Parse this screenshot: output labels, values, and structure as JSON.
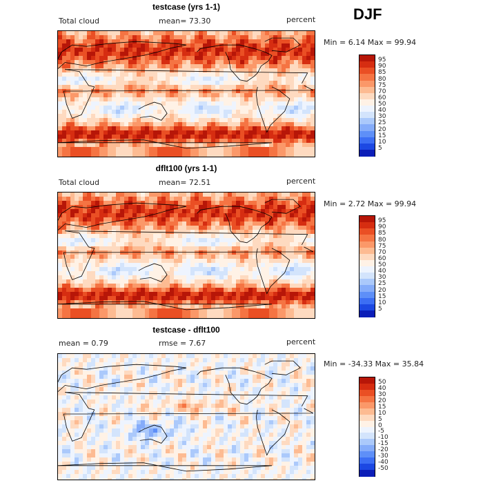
{
  "season": "DJF",
  "units": "percent",
  "colors": {
    "full_palette": [
      "#08006e",
      "#0c1eb8",
      "#1c48e3",
      "#3c6ef4",
      "#5e8ff8",
      "#85acfa",
      "#abc9fb",
      "#d3e4fc",
      "#eef4fe",
      "#fff2e6",
      "#fedac0",
      "#fdbb92",
      "#fb9869",
      "#f57443",
      "#ea4f24",
      "#d62d11",
      "#b71608",
      "#8c0303"
    ],
    "diff_palette": [
      "#08006e",
      "#0c1eb8",
      "#1c48e3",
      "#3c6ef4",
      "#5e8ff8",
      "#85acfa",
      "#abc9fb",
      "#d3e4fc",
      "#eef4fe",
      "#fff2e6",
      "#fedac0",
      "#fdbb92",
      "#fb9869",
      "#f57443",
      "#ea4f24",
      "#d62d11",
      "#b71608",
      "#8c0303"
    ]
  },
  "panels": [
    {
      "title": "testcase (yrs 1-1)",
      "left_label": "Total cloud",
      "center_label": "mean=  73.30",
      "right_label": "percent",
      "stats": "Min =    6.14  Max =   99.94",
      "colorbar_ticks": [
        "95",
        "90",
        "85",
        "80",
        "75",
        "70",
        "60",
        "50",
        "40",
        "30",
        "25",
        "20",
        "15",
        "10",
        "5"
      ]
    },
    {
      "title": "dflt100 (yrs 1-1)",
      "left_label": "Total cloud",
      "center_label": "mean=  72.51",
      "right_label": "percent",
      "stats": "Min =    2.72  Max =   99.94",
      "colorbar_ticks": [
        "95",
        "90",
        "85",
        "80",
        "75",
        "70",
        "60",
        "50",
        "40",
        "30",
        "25",
        "20",
        "15",
        "10",
        "5"
      ]
    },
    {
      "title": "testcase - dflt100",
      "left_label": "mean =    0.79",
      "center_label": "rmse =    7.67",
      "right_label": "percent",
      "stats": "Min =  -34.33  Max =   35.84",
      "colorbar_ticks": [
        "50",
        "40",
        "30",
        "20",
        "15",
        "10",
        "5",
        "0",
        "-5",
        "-10",
        "-15",
        "-20",
        "-30",
        "-40",
        "-50"
      ]
    }
  ],
  "chart_data": [
    {
      "type": "heatmap",
      "title": "testcase (yrs 1-1)",
      "variable": "Total cloud",
      "units": "percent",
      "mean": 73.3,
      "min": 6.14,
      "max": 99.94,
      "levels": [
        5,
        10,
        15,
        20,
        25,
        30,
        40,
        50,
        60,
        70,
        75,
        80,
        85,
        90,
        95
      ],
      "xlim": [
        0,
        360
      ],
      "ylim": [
        -90,
        90
      ]
    },
    {
      "type": "heatmap",
      "title": "dflt100 (yrs 1-1)",
      "variable": "Total cloud",
      "units": "percent",
      "mean": 72.51,
      "min": 2.72,
      "max": 99.94,
      "levels": [
        5,
        10,
        15,
        20,
        25,
        30,
        40,
        50,
        60,
        70,
        75,
        80,
        85,
        90,
        95
      ],
      "xlim": [
        0,
        360
      ],
      "ylim": [
        -90,
        90
      ]
    },
    {
      "type": "heatmap",
      "title": "testcase - dflt100",
      "units": "percent",
      "mean": 0.79,
      "rmse": 7.67,
      "min": -34.33,
      "max": 35.84,
      "levels": [
        -50,
        -40,
        -30,
        -20,
        -15,
        -10,
        -5,
        0,
        5,
        10,
        15,
        20,
        30,
        40,
        50
      ],
      "xlim": [
        0,
        360
      ],
      "ylim": [
        -90,
        90
      ]
    }
  ]
}
